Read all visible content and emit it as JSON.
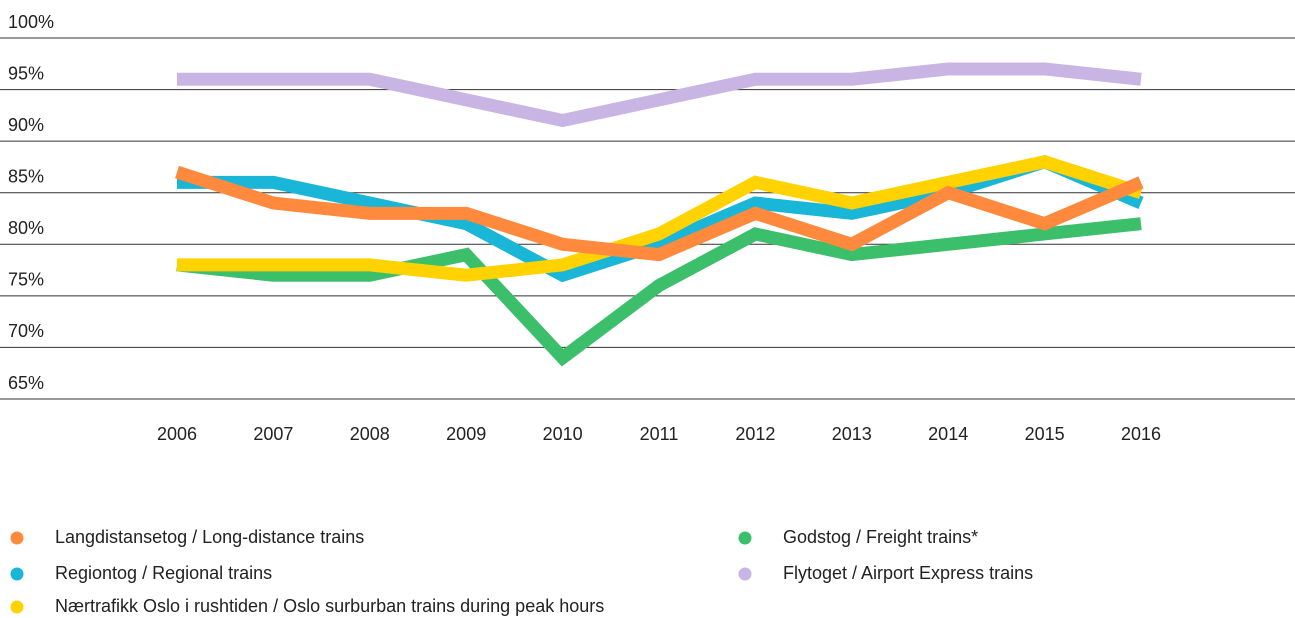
{
  "chart_data": {
    "type": "line",
    "x": [
      2006,
      2007,
      2008,
      2009,
      2010,
      2011,
      2012,
      2013,
      2014,
      2015,
      2016
    ],
    "series": [
      {
        "name": "Langdistansetog / Long-distance trains",
        "color": "#ff8a3d",
        "values": [
          87,
          84,
          83,
          83,
          80,
          79,
          83,
          80,
          85,
          82,
          86
        ]
      },
      {
        "name": "Regiontog / Regional trains",
        "color": "#19b6d8",
        "values": [
          86,
          86,
          84,
          82,
          77,
          80,
          84,
          83,
          85,
          88,
          84
        ]
      },
      {
        "name": "Nærtrafikk Oslo i rushtiden / Oslo surburban trains during peak hours",
        "color": "#ffd200",
        "values": [
          78,
          78,
          78,
          77,
          78,
          81,
          86,
          84,
          86,
          88,
          85
        ]
      },
      {
        "name": "Godstog / Freight trains*",
        "color": "#3cbf6b",
        "values": [
          78,
          77,
          77,
          79,
          69,
          76,
          81,
          79,
          80,
          81,
          82
        ]
      },
      {
        "name": "Flytoget / Airport Express trains",
        "color": "#c9b5e4",
        "values": [
          96,
          96,
          96,
          94,
          92,
          94,
          96,
          96,
          97,
          97,
          96
        ]
      }
    ],
    "ylim": [
      65,
      100
    ],
    "yticks": [
      {
        "value": 65,
        "label": "65%"
      },
      {
        "value": 70,
        "label": "70%"
      },
      {
        "value": 75,
        "label": "75%"
      },
      {
        "value": 80,
        "label": "80%"
      },
      {
        "value": 85,
        "label": "85%"
      },
      {
        "value": 90,
        "label": "90%"
      },
      {
        "value": 95,
        "label": "95%"
      },
      {
        "value": 100,
        "label": "100%"
      }
    ],
    "grid": true
  }
}
